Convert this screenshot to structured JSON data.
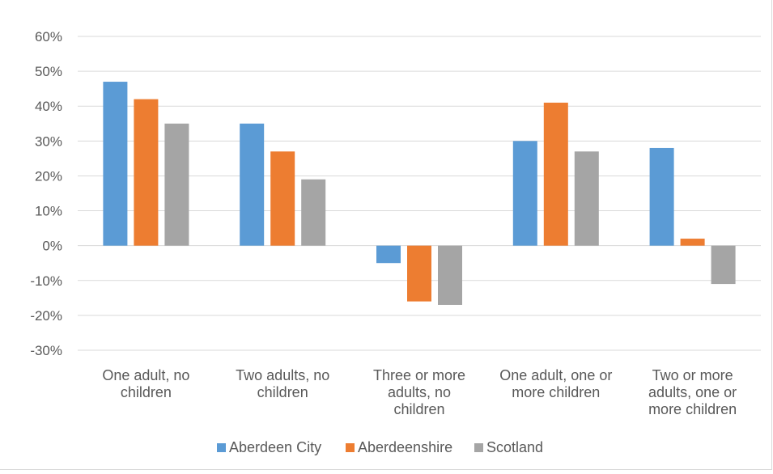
{
  "chart_data": {
    "type": "bar",
    "title": "",
    "xlabel": "",
    "ylabel": "",
    "ylim": [
      -30,
      60
    ],
    "y_ticks": [
      "60%",
      "50%",
      "40%",
      "30%",
      "20%",
      "10%",
      "0%",
      "-10%",
      "-20%",
      "-30%"
    ],
    "y_tick_values": [
      60,
      50,
      40,
      30,
      20,
      10,
      0,
      -10,
      -20,
      -30
    ],
    "categories": [
      [
        "One adult, no",
        "children"
      ],
      [
        "Two adults, no",
        "children"
      ],
      [
        "Three or more",
        "adults, no",
        "children"
      ],
      [
        "One adult, one or",
        "more children"
      ],
      [
        "Two or more",
        "adults, one or",
        "more children"
      ]
    ],
    "series": [
      {
        "name": "Aberdeen City",
        "color": "#5b9bd5",
        "values": [
          47,
          35,
          -5,
          30,
          28
        ]
      },
      {
        "name": "Aberdeenshire",
        "color": "#ed7d31",
        "values": [
          42,
          27,
          -16,
          41,
          2
        ]
      },
      {
        "name": "Scotland",
        "color": "#a5a5a5",
        "values": [
          35,
          19,
          -17,
          27,
          -11
        ]
      }
    ],
    "grid": true,
    "legend_position": "bottom"
  }
}
